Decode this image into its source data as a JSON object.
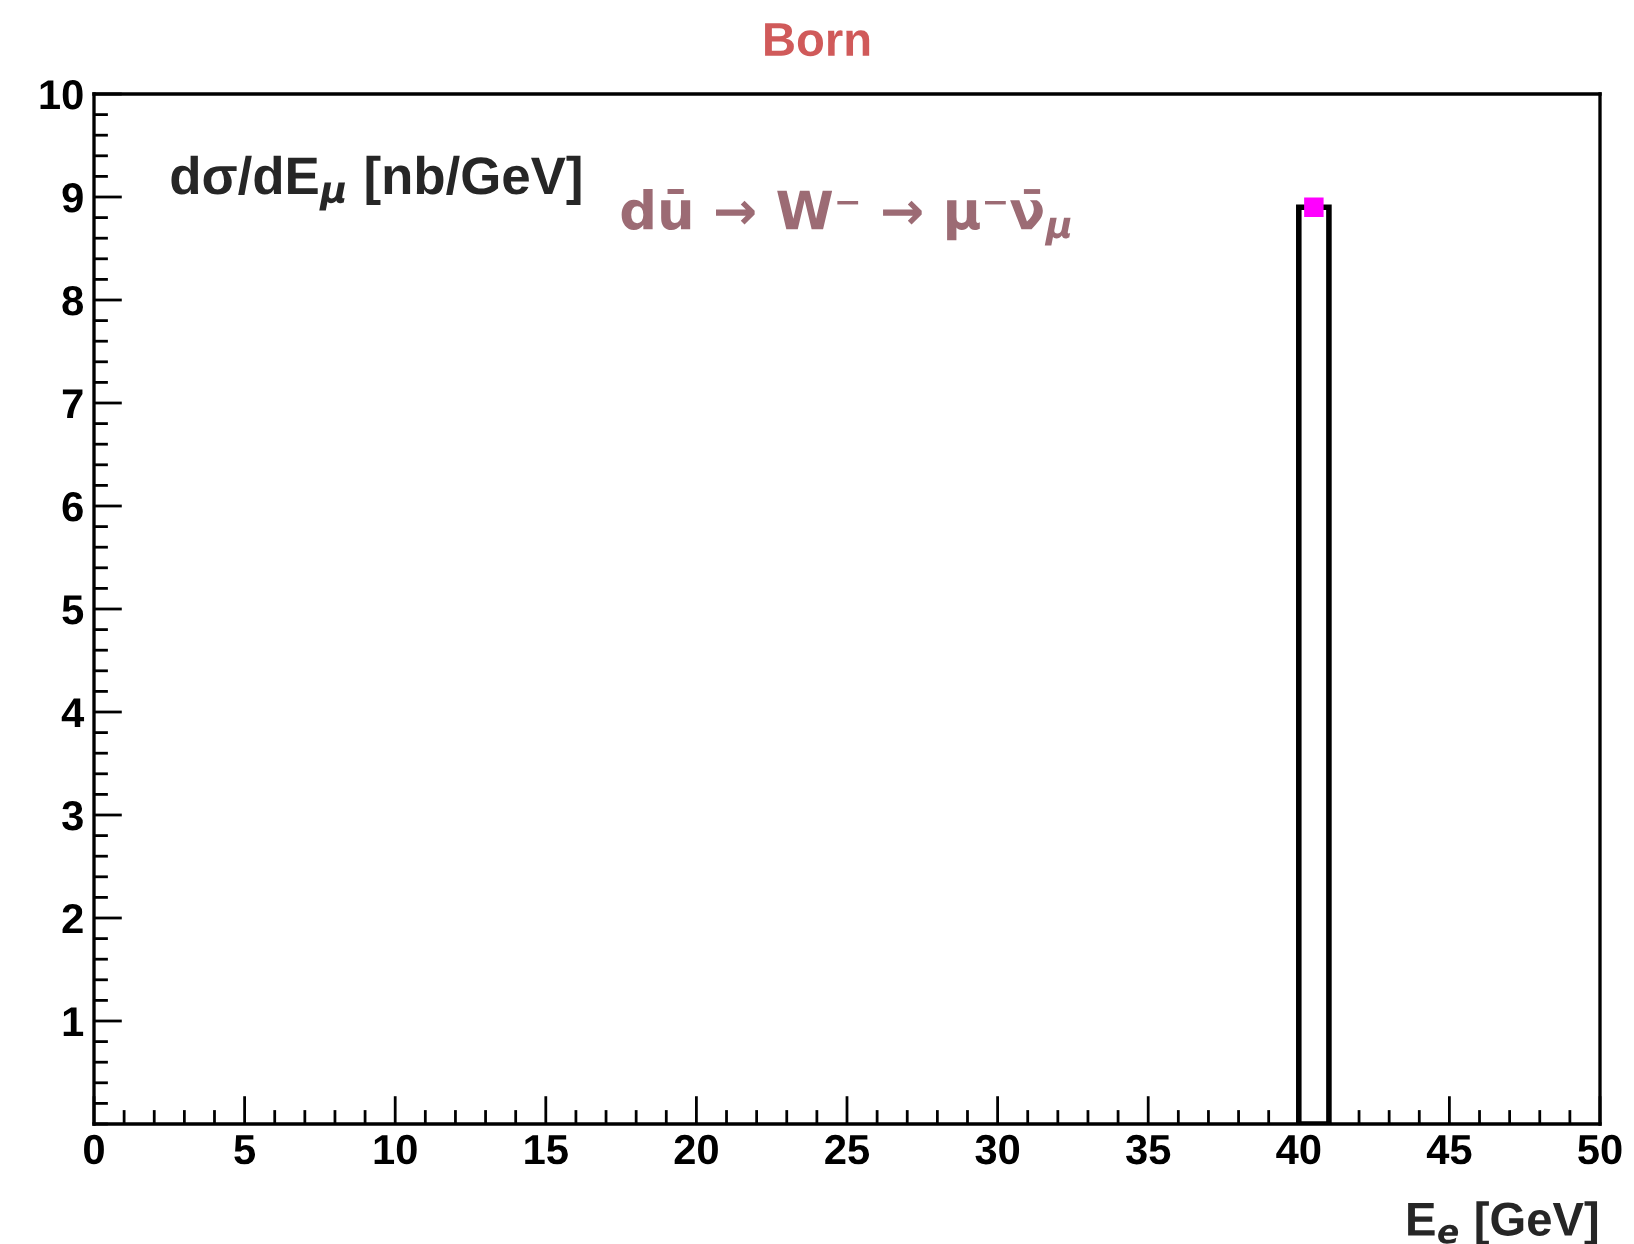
{
  "chart_data": {
    "type": "histogram",
    "title": "Born",
    "xlabel": "E$_{e}$ [GeV]",
    "ylabel": "dσ/dE$_{μ}$ [nb/GeV]",
    "annotations": [
      "dū → W⁻ → μ⁻ν̄$_{μ}$"
    ],
    "bins": [
      40,
      41
    ],
    "values": [
      8.9
    ],
    "color": "#000000",
    "series": [
      {
        "type": "scatter",
        "x": [
          40.5
        ],
        "values": [
          8.9
        ],
        "color": "#ff00ff",
        "marker": "square"
      }
    ],
    "xlim": [
      0,
      50
    ],
    "xticks": [
      0,
      5,
      10,
      15,
      20,
      25,
      30,
      35,
      40,
      45,
      50
    ],
    "ylim": [
      0,
      10
    ],
    "yticks": [
      1,
      2,
      3,
      4,
      5,
      6,
      7,
      8,
      9,
      10
    ],
    "grid": false,
    "legend": false
  }
}
